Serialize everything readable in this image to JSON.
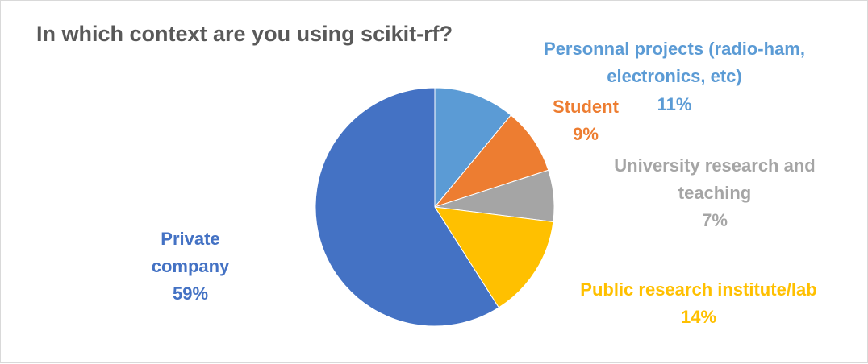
{
  "chart_data": {
    "type": "pie",
    "title": "In which context are you using scikit-rf?",
    "slices": [
      {
        "name": "Personnal projects (radio-ham, electronics, etc)",
        "name_lines": [
          "Personnal projects (radio-ham,",
          "electronics, etc)"
        ],
        "value": 11,
        "label": "11%",
        "color": "#5b9bd5"
      },
      {
        "name": "Student",
        "name_lines": [
          "Student"
        ],
        "value": 9,
        "label": "9%",
        "color": "#ed7d31"
      },
      {
        "name": "University research and teaching",
        "name_lines": [
          "University research and",
          "teaching"
        ],
        "value": 7,
        "label": "7%",
        "color": "#a5a5a5"
      },
      {
        "name": "Public research institute/lab",
        "name_lines": [
          "Public research institute/lab"
        ],
        "value": 14,
        "label": "14%",
        "color": "#ffc000"
      },
      {
        "name": "Private company",
        "name_lines": [
          "Private",
          "company"
        ],
        "value": 59,
        "label": "59%",
        "color": "#4472c4"
      }
    ]
  }
}
